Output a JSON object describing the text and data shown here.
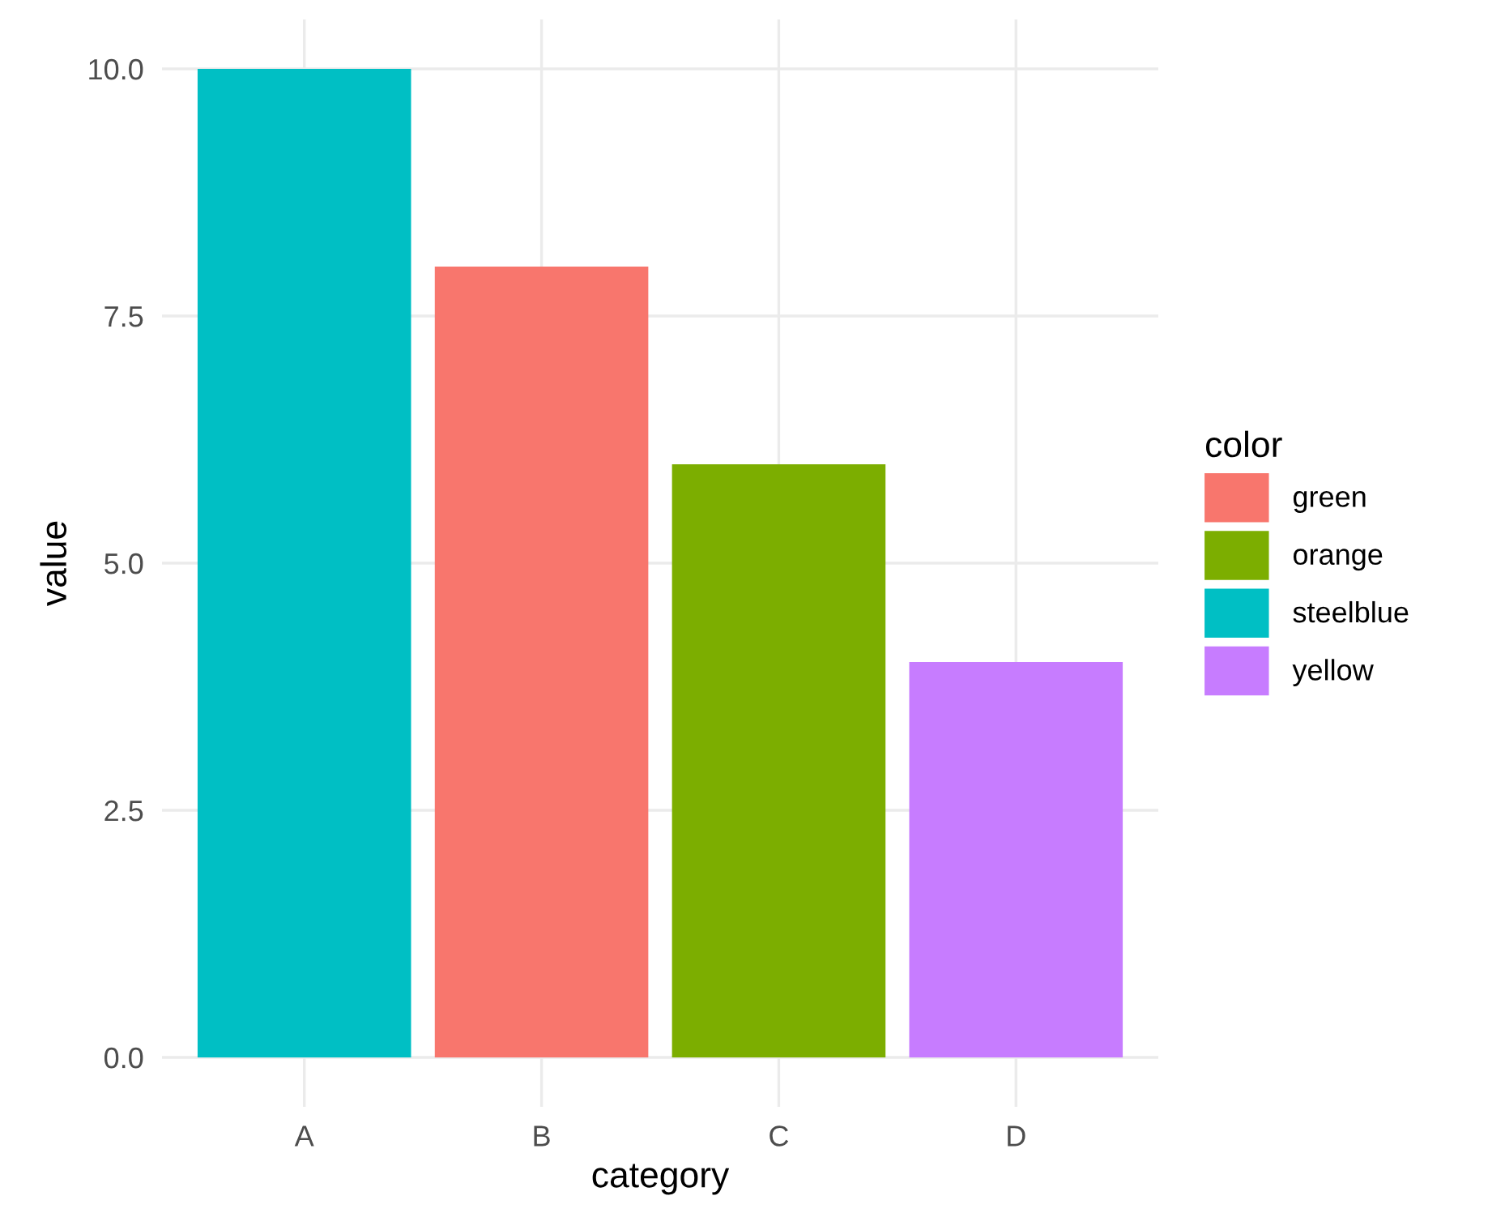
{
  "chart_data": {
    "type": "bar",
    "categories": [
      "A",
      "B",
      "C",
      "D"
    ],
    "xlabel": "category",
    "ylabel": "value",
    "legend_title": "color",
    "series": [
      {
        "name": "green",
        "color": "#f8766d",
        "values": [
          null,
          8,
          null,
          null
        ]
      },
      {
        "name": "orange",
        "color": "#7cae00",
        "values": [
          null,
          null,
          6,
          null
        ]
      },
      {
        "name": "steelblue",
        "color": "#00bfc4",
        "values": [
          10,
          null,
          null,
          null
        ]
      },
      {
        "name": "yellow",
        "color": "#c77cff",
        "values": [
          null,
          null,
          null,
          4
        ]
      }
    ],
    "ylim": [
      -0.5,
      10.5
    ],
    "yticks": [
      {
        "value": 0,
        "label": "0.0"
      },
      {
        "value": 2.5,
        "label": "2.5"
      },
      {
        "value": 5,
        "label": "5.0"
      },
      {
        "value": 7.5,
        "label": "7.5"
      },
      {
        "value": 10,
        "label": "10.0"
      }
    ],
    "grid": true,
    "legend": "right"
  }
}
